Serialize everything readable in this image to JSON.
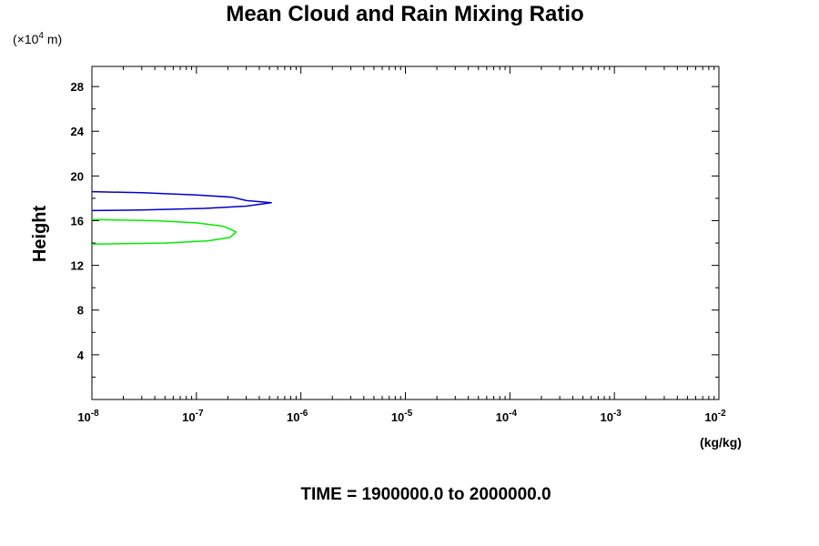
{
  "chart_data": {
    "type": "line",
    "title": "Mean Cloud and Rain Mixing Ratio",
    "ylabel": "Height",
    "y_unit": "(×10⁴ m)",
    "y_unit_parts": {
      "open": "(×10",
      "exp": "4",
      "close": " m)"
    },
    "x_unit": "(kg/kg)",
    "footer": "TIME = 1900000.0 to 2000000.0",
    "xscale": "log",
    "xlim": [
      1e-08,
      0.01
    ],
    "ylim": [
      0,
      29.8
    ],
    "x_tick_labels": [
      {
        "value": 1e-08,
        "base": "10",
        "exp": "-8"
      },
      {
        "value": 1e-07,
        "base": "10",
        "exp": "-7"
      },
      {
        "value": 1e-06,
        "base": "10",
        "exp": "-6"
      },
      {
        "value": 1e-05,
        "base": "10",
        "exp": "-5"
      },
      {
        "value": 0.0001,
        "base": "10",
        "exp": "-4"
      },
      {
        "value": 0.001,
        "base": "10",
        "exp": "-3"
      },
      {
        "value": 0.01,
        "base": "10",
        "exp": "-2"
      }
    ],
    "y_ticks": [
      "4",
      "8",
      "12",
      "16",
      "20",
      "24",
      "28"
    ],
    "grid": false,
    "series": [
      {
        "color": "#0000cc",
        "points": [
          [
            1e-08,
            18.6
          ],
          [
            3e-08,
            18.5
          ],
          [
            1e-07,
            18.3
          ],
          [
            2.2e-07,
            18.1
          ],
          [
            3e-07,
            17.8
          ],
          [
            5.2e-07,
            17.6
          ],
          [
            3e-07,
            17.3
          ],
          [
            1.2e-07,
            17.1
          ],
          [
            3e-08,
            16.95
          ],
          [
            1e-08,
            16.9
          ]
        ]
      },
      {
        "color": "#00ee00",
        "points": [
          [
            1e-08,
            16.1
          ],
          [
            4e-08,
            16.0
          ],
          [
            1e-07,
            15.8
          ],
          [
            1.8e-07,
            15.5
          ],
          [
            2.4e-07,
            15.0
          ],
          [
            2.1e-07,
            14.5
          ],
          [
            1.3e-07,
            14.2
          ],
          [
            5e-08,
            14.0
          ],
          [
            1e-08,
            13.9
          ]
        ]
      }
    ]
  }
}
